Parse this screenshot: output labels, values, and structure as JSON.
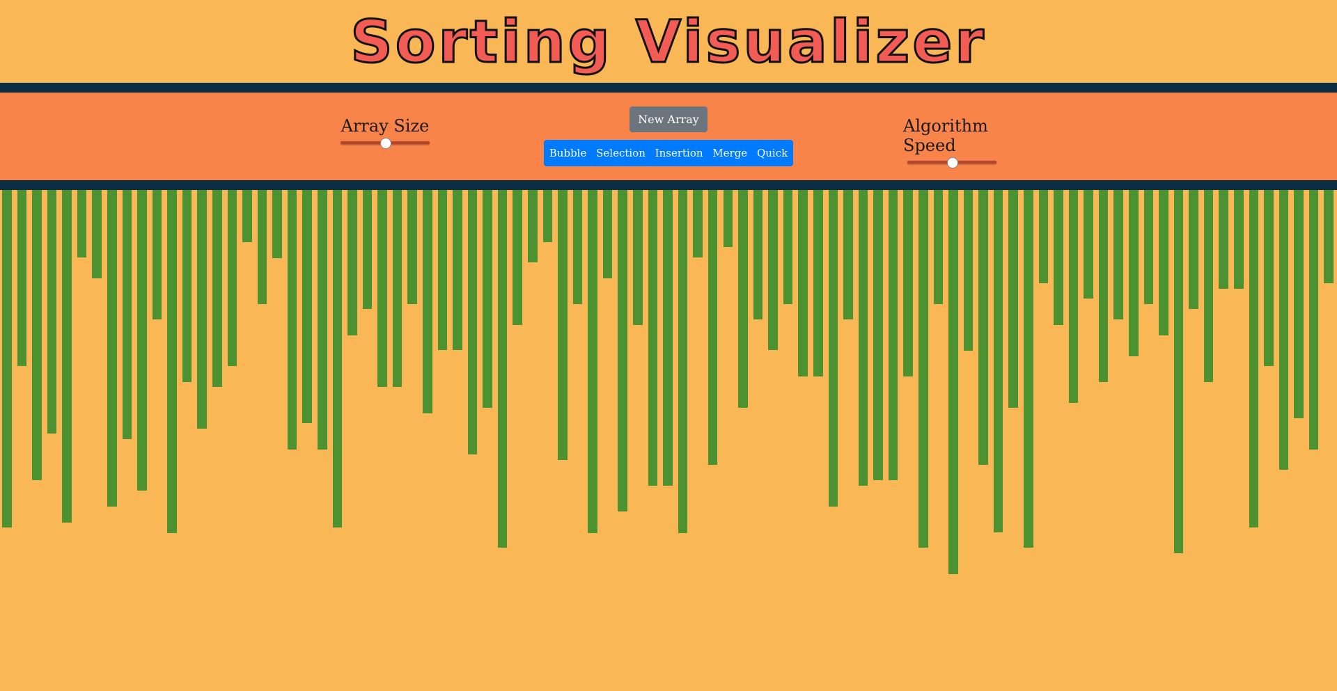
{
  "title": "Sorting Visualizer",
  "controls": {
    "array_size_label": "Array Size",
    "array_size_value": 0.5,
    "speed_label": "Algorithm Speed",
    "speed_value": 0.5,
    "new_array_label": "New Array",
    "algorithms": [
      "Bubble",
      "Selection",
      "Insertion",
      "Merge",
      "Quick"
    ]
  },
  "colors": {
    "background": "#f9b755",
    "controls_bg": "#f9844a",
    "divider": "#0b2e45",
    "bar": "#4d9230",
    "title": "#f25c54",
    "algo_group": "#007bff",
    "new_array_button": "#6c757d"
  },
  "array": [
    485,
    253,
    417,
    350,
    478,
    97,
    127,
    455,
    358,
    432,
    186,
    493,
    276,
    343,
    283,
    253,
    75,
    164,
    98,
    373,
    335,
    373,
    485,
    209,
    171,
    283,
    283,
    164,
    321,
    230,
    230,
    380,
    313,
    514,
    194,
    104,
    75,
    388,
    164,
    493,
    127,
    462,
    194,
    425,
    425,
    493,
    97,
    395,
    82,
    313,
    186,
    230,
    164,
    268,
    268,
    455,
    186,
    425,
    417,
    417,
    268,
    514,
    164,
    552,
    231,
    395,
    492,
    313,
    514,
    134,
    194,
    306,
    156,
    276,
    186,
    239,
    164,
    209,
    522,
    171,
    276,
    142,
    142,
    485,
    253,
    402,
    328,
    373,
    134
  ]
}
